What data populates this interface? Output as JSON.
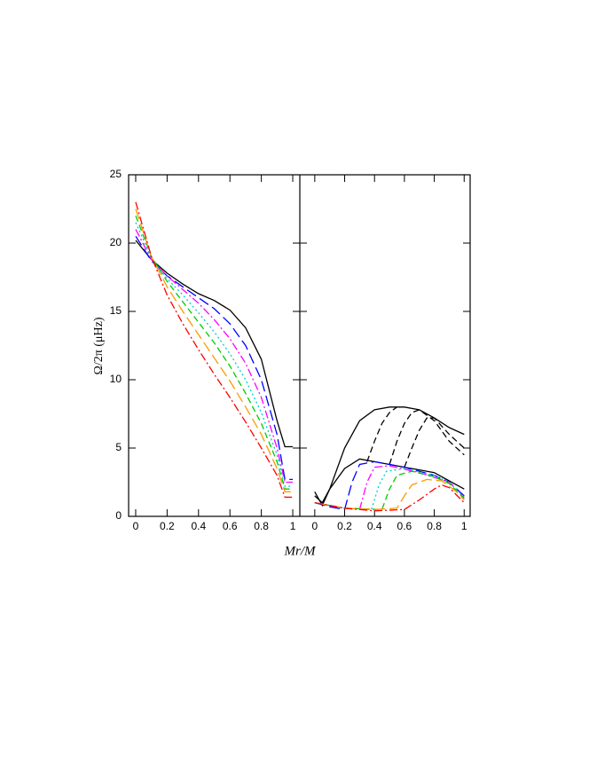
{
  "chart_data": [
    {
      "type": "line",
      "ylabel": "Ω/2π (μHz)",
      "xlabel": "Mr/M",
      "xlim": [
        -0.045,
        1.045
      ],
      "ylim": [
        0,
        25
      ],
      "xticks": [
        0,
        0.2,
        0.4,
        0.6,
        0.8,
        1
      ],
      "yticks": [
        0,
        5,
        10,
        15,
        20,
        25
      ],
      "series": [
        {
          "color": "#000000",
          "dash": "solid",
          "x": [
            0,
            0.1,
            0.2,
            0.3,
            0.4,
            0.5,
            0.6,
            0.7,
            0.8,
            0.9,
            0.95,
            1
          ],
          "values": [
            20.2,
            18.8,
            17.8,
            17,
            16.3,
            15.8,
            15.1,
            13.8,
            11.5,
            7,
            5.1,
            5.1
          ]
        },
        {
          "color": "#0000ff",
          "dash": "longdash",
          "x": [
            0,
            0.1,
            0.2,
            0.3,
            0.4,
            0.5,
            0.6,
            0.7,
            0.8,
            0.9,
            0.95,
            1
          ],
          "values": [
            20.5,
            18.7,
            17.6,
            16.8,
            16,
            15.2,
            14.1,
            12.5,
            10,
            6,
            2.7,
            2.7
          ]
        },
        {
          "color": "#ff00ff",
          "dash": "dashdot",
          "x": [
            0,
            0.1,
            0.2,
            0.3,
            0.4,
            0.5,
            0.6,
            0.7,
            0.8,
            0.9,
            0.95,
            1
          ],
          "values": [
            21,
            18.8,
            17.6,
            16.6,
            15.6,
            14.4,
            13,
            11.2,
            8.7,
            5,
            2.5,
            2.5
          ]
        },
        {
          "color": "#00cccc",
          "dash": "dot",
          "x": [
            0,
            0.1,
            0.2,
            0.3,
            0.4,
            0.5,
            0.6,
            0.7,
            0.8,
            0.9,
            0.95,
            1
          ],
          "values": [
            21.5,
            18.9,
            17.4,
            16.2,
            14.9,
            13.5,
            11.9,
            10,
            7.6,
            4.5,
            2.2,
            2.2
          ]
        },
        {
          "color": "#00cc00",
          "dash": "dash",
          "x": [
            0,
            0.1,
            0.2,
            0.3,
            0.4,
            0.5,
            0.6,
            0.7,
            0.8,
            0.9,
            0.95,
            1
          ],
          "values": [
            22,
            19,
            17.2,
            15.7,
            14.2,
            12.7,
            11,
            9,
            6.8,
            4,
            2,
            2
          ]
        },
        {
          "color": "#ff9900",
          "dash": "longdash",
          "x": [
            0,
            0.1,
            0.2,
            0.3,
            0.4,
            0.5,
            0.6,
            0.7,
            0.8,
            0.9,
            0.95,
            1
          ],
          "values": [
            22.5,
            19,
            16.8,
            15,
            13.3,
            11.6,
            9.9,
            8,
            6,
            3.5,
            1.8,
            1.8
          ]
        },
        {
          "color": "#ff0000",
          "dash": "dashdot",
          "x": [
            0,
            0.1,
            0.2,
            0.3,
            0.4,
            0.5,
            0.6,
            0.7,
            0.8,
            0.9,
            0.95,
            1
          ],
          "values": [
            23,
            19,
            16.2,
            14.1,
            12.2,
            10.4,
            8.7,
            6.9,
            5,
            3,
            1.4,
            1.4
          ]
        }
      ]
    },
    {
      "type": "line",
      "xlim": [
        -0.1,
        1.04
      ],
      "ylim": [
        0,
        25
      ],
      "xticks": [
        0,
        0.2,
        0.4,
        0.6,
        0.8,
        1
      ],
      "series": [
        {
          "color": "#000000",
          "dash": "solid",
          "x": [
            0,
            0.05,
            0.1,
            0.2,
            0.3,
            0.4,
            0.5,
            0.6,
            0.7,
            0.8,
            0.9,
            1
          ],
          "values": [
            1.8,
            0.8,
            2,
            5,
            7,
            7.8,
            8,
            8,
            7.8,
            7.2,
            6.5,
            6
          ]
        },
        {
          "color": "#000000",
          "dash": "solid",
          "x": [
            0,
            0.05,
            0.1,
            0.2,
            0.3,
            0.4,
            0.5,
            0.6,
            0.7,
            0.8,
            0.9,
            1
          ],
          "values": [
            1.5,
            1,
            2,
            3.5,
            4.2,
            4,
            3.8,
            3.6,
            3.4,
            3.2,
            2.6,
            2
          ]
        },
        {
          "color": "#000000",
          "dash": "dash",
          "x": [
            0.35,
            0.4,
            0.45,
            0.5,
            0.55
          ],
          "values": [
            4,
            5.5,
            6.8,
            7.6,
            8
          ]
        },
        {
          "color": "#000000",
          "dash": "dash",
          "x": [
            0.5,
            0.55,
            0.6,
            0.65,
            0.7,
            0.8,
            0.9,
            1
          ],
          "values": [
            3.8,
            5.5,
            6.8,
            7.6,
            7.8,
            7,
            5.5,
            4.5
          ]
        },
        {
          "color": "#000000",
          "dash": "dash",
          "x": [
            0.6,
            0.65,
            0.7,
            0.75,
            0.8,
            0.9,
            1
          ],
          "values": [
            3.6,
            5,
            6.3,
            7.2,
            7.2,
            6,
            5
          ]
        },
        {
          "color": "#0000ff",
          "dash": "longdash",
          "x": [
            0,
            0.1,
            0.2,
            0.25,
            0.3,
            0.4,
            0.6,
            0.8,
            0.9,
            1
          ],
          "values": [
            1,
            0.7,
            0.5,
            2.5,
            3.8,
            4,
            3.6,
            3,
            2.5,
            1.5
          ]
        },
        {
          "color": "#ff00ff",
          "dash": "dashdot",
          "x": [
            0,
            0.2,
            0.3,
            0.35,
            0.4,
            0.5,
            0.7,
            0.9,
            1
          ],
          "values": [
            1,
            0.6,
            0.5,
            2.5,
            3.6,
            3.7,
            3.2,
            2.5,
            1.4
          ]
        },
        {
          "color": "#00cccc",
          "dash": "dot",
          "x": [
            0,
            0.2,
            0.38,
            0.43,
            0.48,
            0.6,
            0.8,
            0.9,
            1
          ],
          "values": [
            1,
            0.6,
            0.5,
            2.3,
            3.3,
            3.5,
            3,
            2.5,
            1.4
          ]
        },
        {
          "color": "#00cc00",
          "dash": "dash",
          "x": [
            0,
            0.2,
            0.45,
            0.5,
            0.55,
            0.65,
            0.8,
            0.9,
            1
          ],
          "values": [
            1,
            0.6,
            0.5,
            2,
            3,
            3.3,
            2.9,
            2.4,
            1.3
          ]
        },
        {
          "color": "#ff9900",
          "dash": "longdash",
          "x": [
            0,
            0.2,
            0.4,
            0.55,
            0.6,
            0.65,
            0.75,
            0.85,
            0.95,
            1
          ],
          "values": [
            1,
            0.6,
            0.5,
            0.6,
            1.5,
            2.3,
            2.7,
            2.6,
            1.8,
            1.2
          ]
        },
        {
          "color": "#ff0000",
          "dash": "dashdot",
          "x": [
            0,
            0.2,
            0.4,
            0.6,
            0.7,
            0.8,
            0.85,
            0.9,
            1
          ],
          "values": [
            1,
            0.6,
            0.4,
            0.5,
            1.2,
            2,
            2.3,
            2.1,
            1
          ]
        }
      ]
    }
  ]
}
